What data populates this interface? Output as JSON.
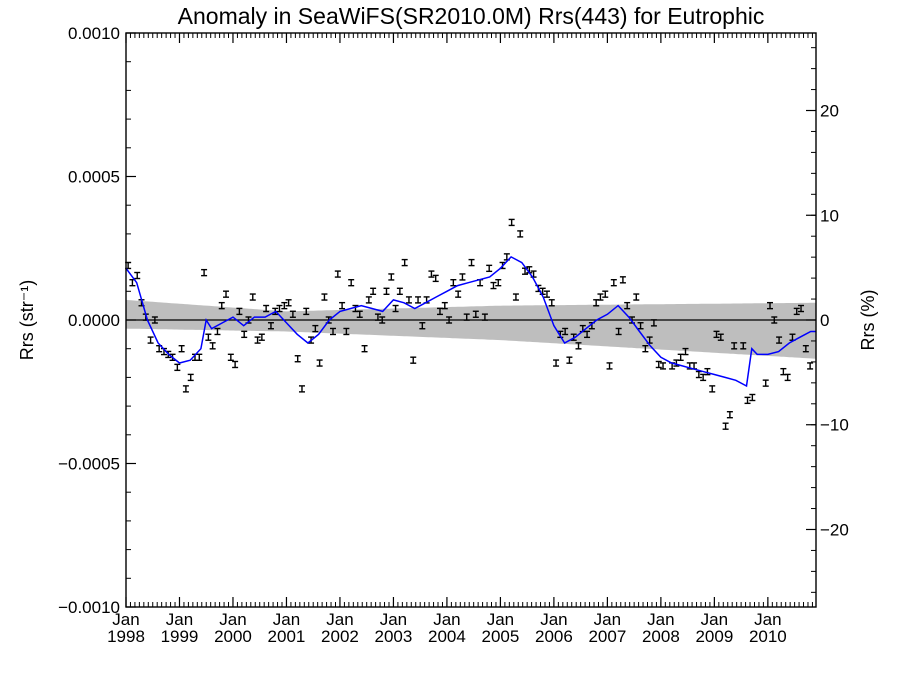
{
  "chart_data": {
    "type": "scatter",
    "title": "Anomaly in SeaWiFS(SR2010.0M) Rrs(443) for Eutrophic",
    "ylabel_left": "Rrs (str⁻¹)",
    "ylabel_right": "Rrs (%)",
    "xlabel": "",
    "xlim": [
      1998.0,
      2010.9
    ],
    "ylim_left": [
      -0.001,
      0.001
    ],
    "ylim_right": [
      -27.4,
      27.4
    ],
    "left_ticks": [
      {
        "value": 0.001,
        "label": "0.0010"
      },
      {
        "value": 0.0005,
        "label": "0.0005"
      },
      {
        "value": 0.0,
        "label": "0.0000"
      },
      {
        "value": -0.0005,
        "label": "−0.0005"
      },
      {
        "value": -0.001,
        "label": "−0.0010"
      }
    ],
    "right_ticks": [
      {
        "value": 20,
        "label": "20"
      },
      {
        "value": 10,
        "label": "10"
      },
      {
        "value": 0,
        "label": "0"
      },
      {
        "value": -10,
        "label": "−10"
      },
      {
        "value": -20,
        "label": "−20"
      }
    ],
    "x_ticks": [
      {
        "value": 1998.0,
        "month": "Jan",
        "year": "1998"
      },
      {
        "value": 1999.0,
        "month": "Jan",
        "year": "1999"
      },
      {
        "value": 2000.0,
        "month": "Jan",
        "year": "2000"
      },
      {
        "value": 2001.0,
        "month": "Jan",
        "year": "2001"
      },
      {
        "value": 2002.0,
        "month": "Jan",
        "year": "2002"
      },
      {
        "value": 2003.0,
        "month": "Jan",
        "year": "2003"
      },
      {
        "value": 2004.0,
        "month": "Jan",
        "year": "2004"
      },
      {
        "value": 2005.0,
        "month": "Jan",
        "year": "2005"
      },
      {
        "value": 2006.0,
        "month": "Jan",
        "year": "2006"
      },
      {
        "value": 2007.0,
        "month": "Jan",
        "year": "2007"
      },
      {
        "value": 2008.0,
        "month": "Jan",
        "year": "2008"
      },
      {
        "value": 2009.0,
        "month": "Jan",
        "year": "2009"
      },
      {
        "value": 2010.0,
        "month": "Jan",
        "year": "2010"
      }
    ],
    "zero_line": 0.0,
    "band": {
      "color": "#bebebe",
      "upper": [
        [
          1998.0,
          7e-05
        ],
        [
          2001.0,
          3e-05
        ],
        [
          2005.0,
          5e-05
        ],
        [
          2010.9,
          6e-05
        ]
      ],
      "lower": [
        [
          1998.0,
          -3e-05
        ],
        [
          2001.0,
          -4e-05
        ],
        [
          2005.0,
          -7e-05
        ],
        [
          2010.9,
          -0.000135
        ]
      ]
    },
    "colors": {
      "points": "#000000",
      "line": "#0000ff",
      "band": "#bebebe"
    },
    "points": [
      [
        1998.04,
        0.00019
      ],
      [
        1998.12,
        0.00013
      ],
      [
        1998.21,
        0.000155
      ],
      [
        1998.29,
        6e-05
      ],
      [
        1998.37,
        1e-05
      ],
      [
        1998.46,
        -7e-05
      ],
      [
        1998.54,
        0.0
      ],
      [
        1998.62,
        -0.0001
      ],
      [
        1998.71,
        -0.00011
      ],
      [
        1998.79,
        -0.00012
      ],
      [
        1998.87,
        -0.00013
      ],
      [
        1998.96,
        -0.000165
      ],
      [
        1999.04,
        -0.0001
      ],
      [
        1999.12,
        -0.00024
      ],
      [
        1999.21,
        -0.0002
      ],
      [
        1999.29,
        -0.00013
      ],
      [
        1999.37,
        -0.00013
      ],
      [
        1999.46,
        0.000165
      ],
      [
        1999.54,
        -6e-05
      ],
      [
        1999.62,
        -9e-05
      ],
      [
        1999.71,
        -4e-05
      ],
      [
        1999.79,
        5e-05
      ],
      [
        1999.87,
        9e-05
      ],
      [
        1999.96,
        -0.00013
      ],
      [
        2000.04,
        -0.000155
      ],
      [
        2000.12,
        3e-05
      ],
      [
        2000.21,
        -5e-05
      ],
      [
        2000.29,
        0.0
      ],
      [
        2000.37,
        8e-05
      ],
      [
        2000.46,
        -7e-05
      ],
      [
        2000.54,
        -6e-05
      ],
      [
        2000.62,
        4e-05
      ],
      [
        2000.71,
        -2e-05
      ],
      [
        2000.79,
        3e-05
      ],
      [
        2000.87,
        4e-05
      ],
      [
        2000.96,
        5e-05
      ],
      [
        2001.04,
        6e-05
      ],
      [
        2001.12,
        2e-05
      ],
      [
        2001.21,
        -0.000135
      ],
      [
        2001.29,
        -0.00024
      ],
      [
        2001.37,
        3e-05
      ],
      [
        2001.46,
        -7e-05
      ],
      [
        2001.54,
        -3e-05
      ],
      [
        2001.62,
        -0.00015
      ],
      [
        2001.71,
        8e-05
      ],
      [
        2001.79,
        0.0
      ],
      [
        2001.87,
        -4e-05
      ],
      [
        2001.96,
        0.00016
      ],
      [
        2002.04,
        5e-05
      ],
      [
        2002.12,
        -4e-05
      ],
      [
        2002.21,
        0.00013
      ],
      [
        2002.29,
        4e-05
      ],
      [
        2002.37,
        2e-05
      ],
      [
        2002.46,
        -0.0001
      ],
      [
        2002.54,
        7e-05
      ],
      [
        2002.62,
        0.0001
      ],
      [
        2002.71,
        1e-05
      ],
      [
        2002.79,
        0.0
      ],
      [
        2002.87,
        0.0001
      ],
      [
        2002.96,
        0.00015
      ],
      [
        2003.04,
        4e-05
      ],
      [
        2003.12,
        0.0001
      ],
      [
        2003.21,
        0.0002
      ],
      [
        2003.29,
        7e-05
      ],
      [
        2003.37,
        -0.00014
      ],
      [
        2003.46,
        7e-05
      ],
      [
        2003.54,
        -2e-05
      ],
      [
        2003.62,
        7e-05
      ],
      [
        2003.71,
        0.00016
      ],
      [
        2003.79,
        0.000145
      ],
      [
        2003.87,
        3e-05
      ],
      [
        2003.96,
        5e-05
      ],
      [
        2004.04,
        0.0
      ],
      [
        2004.12,
        0.00013
      ],
      [
        2004.21,
        9e-05
      ],
      [
        2004.29,
        0.00015
      ],
      [
        2004.37,
        1e-05
      ],
      [
        2004.46,
        0.0002
      ],
      [
        2004.54,
        2e-05
      ],
      [
        2004.62,
        0.00013
      ],
      [
        2004.71,
        1e-05
      ],
      [
        2004.79,
        0.00018
      ],
      [
        2004.87,
        0.00012
      ],
      [
        2004.96,
        0.00013
      ],
      [
        2005.04,
        0.00019
      ],
      [
        2005.12,
        0.00022
      ],
      [
        2005.21,
        0.00034
      ],
      [
        2005.29,
        8e-05
      ],
      [
        2005.37,
        0.0003
      ],
      [
        2005.46,
        0.00017
      ],
      [
        2005.54,
        0.000175
      ],
      [
        2005.62,
        0.00016
      ],
      [
        2005.71,
        0.00011
      ],
      [
        2005.79,
        0.0001
      ],
      [
        2005.87,
        9e-05
      ],
      [
        2005.96,
        6e-05
      ],
      [
        2006.04,
        -0.00015
      ],
      [
        2006.12,
        -5e-05
      ],
      [
        2006.21,
        -4e-05
      ],
      [
        2006.29,
        -0.00014
      ],
      [
        2006.37,
        -6e-05
      ],
      [
        2006.46,
        -9e-05
      ],
      [
        2006.54,
        -3e-05
      ],
      [
        2006.62,
        -5e-05
      ],
      [
        2006.71,
        -2e-05
      ],
      [
        2006.79,
        6e-05
      ],
      [
        2006.87,
        8e-05
      ],
      [
        2006.96,
        9e-05
      ],
      [
        2007.04,
        -0.00016
      ],
      [
        2007.12,
        0.00013
      ],
      [
        2007.21,
        -4e-05
      ],
      [
        2007.29,
        0.00014
      ],
      [
        2007.37,
        5e-05
      ],
      [
        2007.46,
        0.0
      ],
      [
        2007.54,
        8e-05
      ],
      [
        2007.62,
        -2e-05
      ],
      [
        2007.71,
        -0.0001
      ],
      [
        2007.79,
        -7e-05
      ],
      [
        2007.87,
        -1e-05
      ],
      [
        2007.96,
        -0.000155
      ],
      [
        2008.04,
        -0.00016
      ],
      [
        2008.21,
        -0.00016
      ],
      [
        2008.29,
        -0.00015
      ],
      [
        2008.37,
        -0.00013
      ],
      [
        2008.46,
        -0.00011
      ],
      [
        2008.54,
        -0.00016
      ],
      [
        2008.62,
        -0.00016
      ],
      [
        2008.71,
        -0.00019
      ],
      [
        2008.79,
        -0.0002
      ],
      [
        2008.87,
        -0.00018
      ],
      [
        2008.96,
        -0.00024
      ],
      [
        2009.04,
        -5e-05
      ],
      [
        2009.12,
        -6e-05
      ],
      [
        2009.21,
        -0.00037
      ],
      [
        2009.29,
        -0.00033
      ],
      [
        2009.37,
        -9e-05
      ],
      [
        2009.54,
        -9e-05
      ],
      [
        2009.62,
        -0.00028
      ],
      [
        2009.71,
        -0.00027
      ],
      [
        2009.96,
        -0.00022
      ],
      [
        2010.04,
        5e-05
      ],
      [
        2010.12,
        0.0
      ],
      [
        2010.21,
        -7e-05
      ],
      [
        2010.29,
        -0.00018
      ],
      [
        2010.37,
        -0.0002
      ],
      [
        2010.46,
        -6e-05
      ],
      [
        2010.54,
        3e-05
      ],
      [
        2010.62,
        4e-05
      ],
      [
        2010.71,
        -0.0001
      ],
      [
        2010.79,
        -0.00016
      ]
    ],
    "smoothed_line": [
      [
        1998.0,
        0.00018
      ],
      [
        1998.2,
        0.00013
      ],
      [
        1998.4,
        0.0
      ],
      [
        1998.6,
        -8e-05
      ],
      [
        1998.8,
        -0.00012
      ],
      [
        1999.0,
        -0.00015
      ],
      [
        1999.2,
        -0.00014
      ],
      [
        1999.4,
        -0.0001
      ],
      [
        1999.5,
        0.0
      ],
      [
        1999.6,
        -3e-05
      ],
      [
        1999.8,
        -1e-05
      ],
      [
        2000.0,
        1e-05
      ],
      [
        2000.2,
        -2e-05
      ],
      [
        2000.4,
        1e-05
      ],
      [
        2000.6,
        1e-05
      ],
      [
        2000.8,
        3e-05
      ],
      [
        2001.0,
        -1e-05
      ],
      [
        2001.2,
        -5e-05
      ],
      [
        2001.4,
        -8e-05
      ],
      [
        2001.6,
        -5e-05
      ],
      [
        2001.8,
        0.0
      ],
      [
        2002.0,
        3e-05
      ],
      [
        2002.2,
        4e-05
      ],
      [
        2002.4,
        5e-05
      ],
      [
        2002.6,
        4e-05
      ],
      [
        2002.8,
        3e-05
      ],
      [
        2003.0,
        7e-05
      ],
      [
        2003.2,
        6e-05
      ],
      [
        2003.4,
        4e-05
      ],
      [
        2003.6,
        6e-05
      ],
      [
        2003.8,
        8e-05
      ],
      [
        2004.0,
        0.0001
      ],
      [
        2004.2,
        0.00012
      ],
      [
        2004.4,
        0.00013
      ],
      [
        2004.6,
        0.00014
      ],
      [
        2004.8,
        0.00015
      ],
      [
        2005.0,
        0.00018
      ],
      [
        2005.2,
        0.00022
      ],
      [
        2005.4,
        0.0002
      ],
      [
        2005.6,
        0.00015
      ],
      [
        2005.8,
        8e-05
      ],
      [
        2006.0,
        -2e-05
      ],
      [
        2006.2,
        -8e-05
      ],
      [
        2006.4,
        -6e-05
      ],
      [
        2006.6,
        -3e-05
      ],
      [
        2006.8,
        0.0
      ],
      [
        2007.0,
        2e-05
      ],
      [
        2007.2,
        5e-05
      ],
      [
        2007.4,
        1e-05
      ],
      [
        2007.6,
        -4e-05
      ],
      [
        2007.8,
        -9e-05
      ],
      [
        2008.0,
        -0.00013
      ],
      [
        2008.2,
        -0.00015
      ],
      [
        2008.4,
        -0.00016
      ],
      [
        2008.6,
        -0.00017
      ],
      [
        2008.8,
        -0.00018
      ],
      [
        2009.0,
        -0.00019
      ],
      [
        2009.2,
        -0.0002
      ],
      [
        2009.4,
        -0.00021
      ],
      [
        2009.6,
        -0.00023
      ],
      [
        2009.7,
        -0.0001
      ],
      [
        2009.8,
        -0.00012
      ],
      [
        2010.0,
        -0.00012
      ],
      [
        2010.2,
        -0.00011
      ],
      [
        2010.4,
        -8e-05
      ],
      [
        2010.6,
        -6e-05
      ],
      [
        2010.8,
        -4e-05
      ],
      [
        2010.9,
        -4e-05
      ]
    ]
  }
}
